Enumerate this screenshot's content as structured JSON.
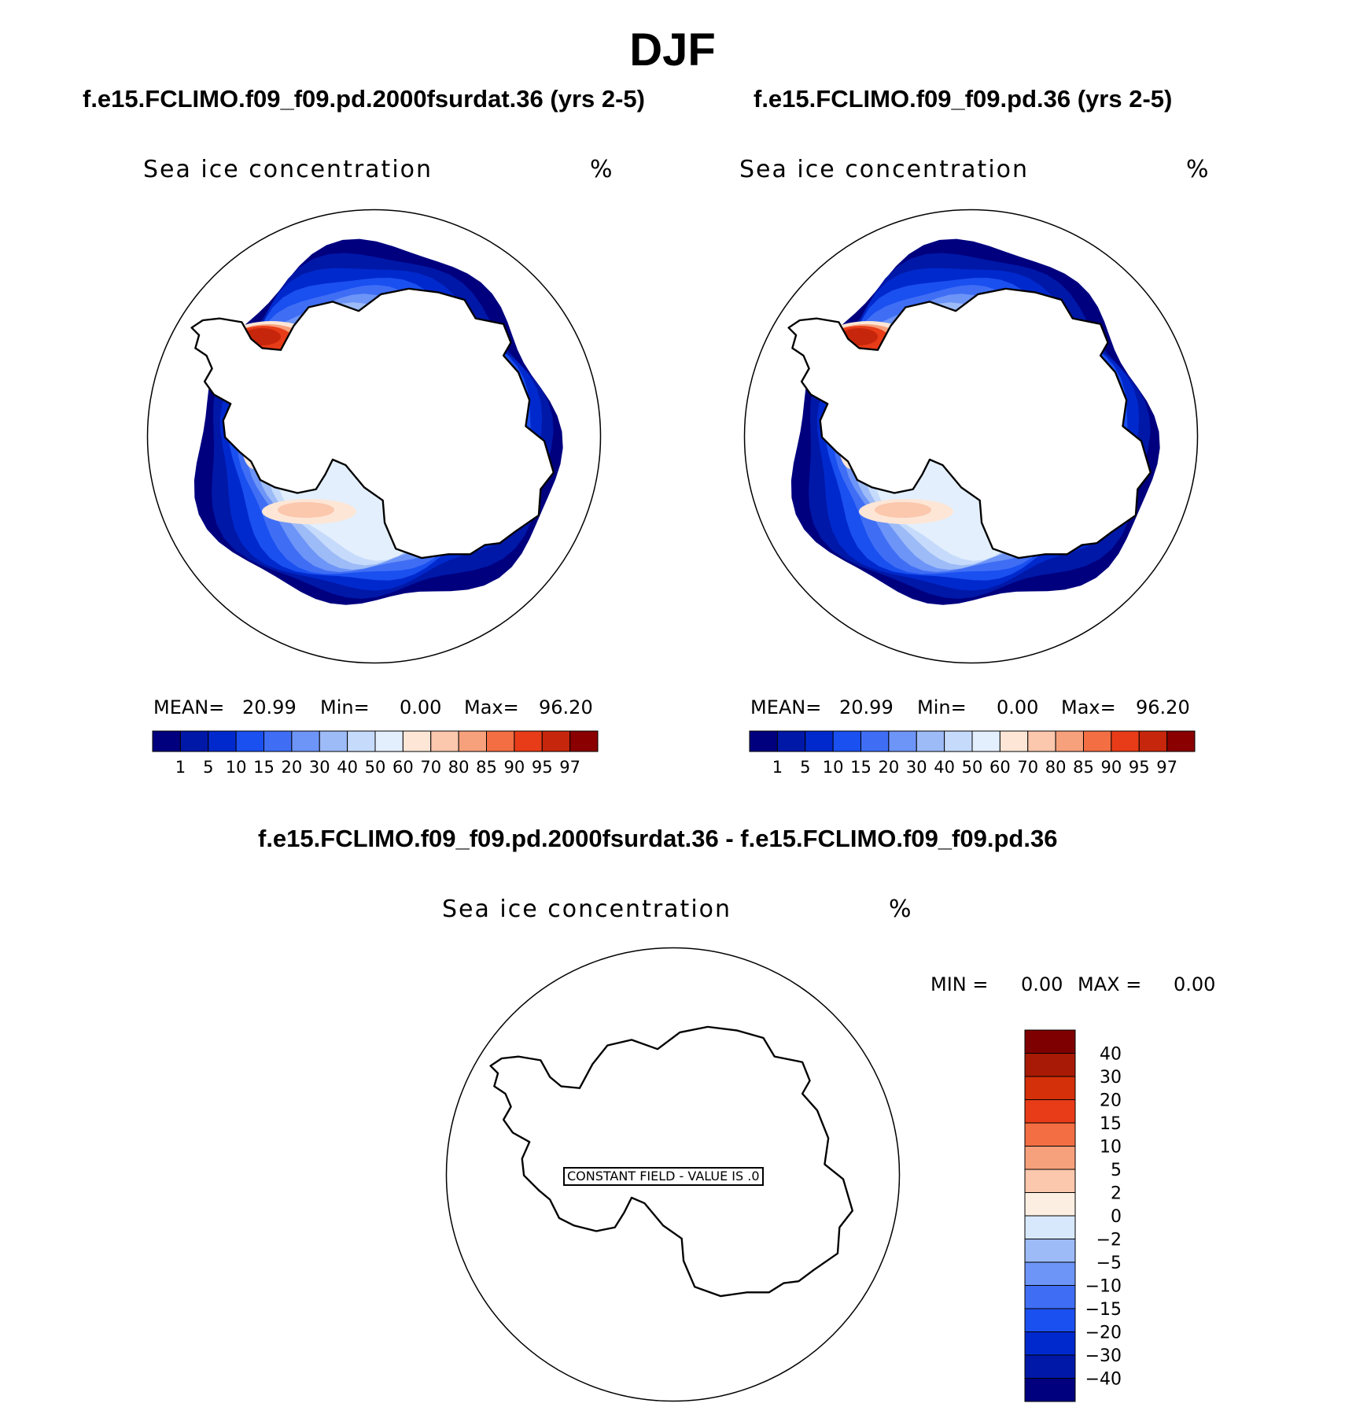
{
  "figure": {
    "season_title": "DJF",
    "panel_left": {
      "case_title": "f.e15.FCLIMO.f09_f09.pd.2000fsurdat.36 (yrs 2-5)",
      "variable": "Sea ice concentration",
      "units": "%",
      "mean_label": "MEAN=",
      "mean_value": "20.99",
      "min_label": "Min=",
      "min_value": "0.00",
      "max_label": "Max=",
      "max_value": "96.20"
    },
    "panel_right": {
      "case_title": "f.e15.FCLIMO.f09_f09.pd.36 (yrs 2-5)",
      "variable": "Sea ice concentration",
      "units": "%",
      "mean_label": "MEAN=",
      "mean_value": "20.99",
      "min_label": "Min=",
      "min_value": "0.00",
      "max_label": "Max=",
      "max_value": "96.20"
    },
    "panel_diff": {
      "case_title": "f.e15.FCLIMO.f09_f09.pd.2000fsurdat.36 - f.e15.FCLIMO.f09_f09.pd.36",
      "variable": "Sea ice concentration",
      "units": "%",
      "min_label": "MIN =",
      "min_value": "0.00",
      "max_label": "MAX =",
      "max_value": "0.00",
      "constant_field_label": "CONSTANT FIELD - VALUE IS .0"
    }
  },
  "chart_data": [
    {
      "type": "heatmap",
      "projection": "south polar stereographic",
      "title": "f.e15.FCLIMO.f09_f09.pd.2000fsurdat.36 (yrs 2-5)",
      "variable": "Sea ice concentration",
      "units": "%",
      "stats": {
        "mean": 20.99,
        "min": 0.0,
        "max": 96.2
      },
      "contour_levels": [
        1,
        5,
        10,
        15,
        20,
        30,
        40,
        50,
        60,
        70,
        80,
        85,
        90,
        95,
        97
      ],
      "colors": [
        "#00007f",
        "#0018a8",
        "#0029cd",
        "#1a4ff0",
        "#3f6ef5",
        "#6d94f7",
        "#9dbbf7",
        "#c6dbfb",
        "#e3effd",
        "#fde6d6",
        "#fbc7ad",
        "#f7a07c",
        "#f36e43",
        "#e83c18",
        "#c6260b",
        "#8a0000"
      ]
    },
    {
      "type": "heatmap",
      "projection": "south polar stereographic",
      "title": "f.e15.FCLIMO.f09_f09.pd.36 (yrs 2-5)",
      "variable": "Sea ice concentration",
      "units": "%",
      "stats": {
        "mean": 20.99,
        "min": 0.0,
        "max": 96.2
      },
      "contour_levels": [
        1,
        5,
        10,
        15,
        20,
        30,
        40,
        50,
        60,
        70,
        80,
        85,
        90,
        95,
        97
      ],
      "colors": [
        "#00007f",
        "#0018a8",
        "#0029cd",
        "#1a4ff0",
        "#3f6ef5",
        "#6d94f7",
        "#9dbbf7",
        "#c6dbfb",
        "#e3effd",
        "#fde6d6",
        "#fbc7ad",
        "#f7a07c",
        "#f36e43",
        "#e83c18",
        "#c6260b",
        "#8a0000"
      ]
    },
    {
      "type": "heatmap",
      "projection": "south polar stereographic",
      "title": "f.e15.FCLIMO.f09_f09.pd.2000fsurdat.36 - f.e15.FCLIMO.f09_f09.pd.36",
      "variable": "Sea ice concentration",
      "units": "%",
      "stats": {
        "min": 0.0,
        "max": 0.0
      },
      "note": "CONSTANT FIELD - VALUE IS .0",
      "contour_levels": [
        -40,
        -30,
        -20,
        -15,
        -10,
        -5,
        -2,
        0,
        2,
        5,
        10,
        15,
        20,
        30,
        40
      ],
      "colors": [
        "#00007f",
        "#0018a8",
        "#0029cd",
        "#1a4ff0",
        "#3f6ef5",
        "#6d94f7",
        "#9dbbf7",
        "#d8e8fc",
        "#fdeee2",
        "#fbc7ad",
        "#f7a07c",
        "#f36e43",
        "#e83c18",
        "#d4300a",
        "#a81a05",
        "#7f0000"
      ]
    }
  ]
}
